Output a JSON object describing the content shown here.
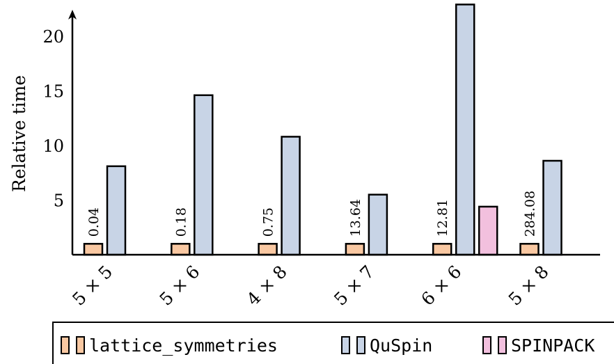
{
  "chart_data": {
    "type": "bar",
    "ylabel": "Relative time",
    "ylim": [
      0,
      23
    ],
    "yticks": [
      5,
      10,
      15,
      20
    ],
    "categories": [
      "5 × 5",
      "5 × 6",
      "4 × 8",
      "5 × 7",
      "6 × 6",
      "5 × 8"
    ],
    "series": [
      {
        "name": "lattice_symmetries",
        "color": "#f9c8a2",
        "values": [
          1,
          1,
          1,
          1,
          1,
          1
        ],
        "labels": [
          "0.04",
          "0.18",
          "0.75",
          "13.64",
          "12.81",
          "284.08"
        ]
      },
      {
        "name": "QuSpin",
        "color": "#c8d4e6",
        "values": [
          8.1,
          14.6,
          10.8,
          5.5,
          22.9,
          8.6
        ]
      },
      {
        "name": "SPINPACK",
        "color": "#f2c0de",
        "values": [
          null,
          null,
          null,
          null,
          4.4,
          null
        ]
      }
    ],
    "legend_position": "bottom",
    "grid": false
  }
}
